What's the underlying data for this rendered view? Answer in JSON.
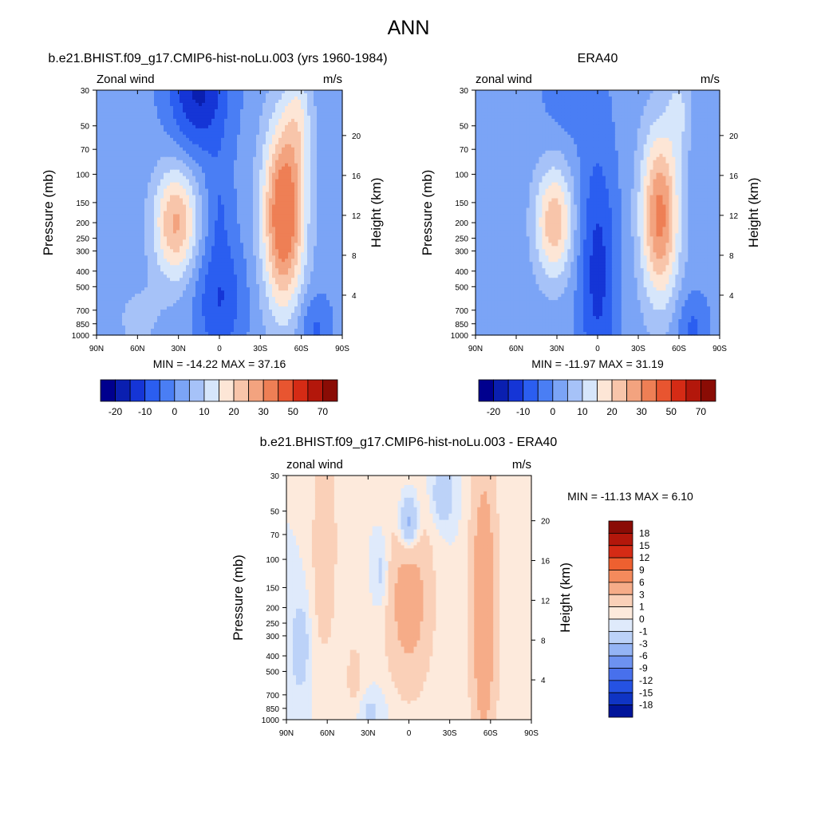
{
  "page": {
    "title": "ANN"
  },
  "chart_data": [
    {
      "id": "model",
      "type": "contour",
      "title": "b.e21.BHIST.f09_g17.CMIP6-hist-noLu.003 (yrs 1960-1984)",
      "left_string": "Zonal wind",
      "right_string": "m/s",
      "xlabel": "",
      "ylabel": "Pressure (mb)",
      "y2label": "Height (km)",
      "x_ticks": [
        "90N",
        "60N",
        "30N",
        "0",
        "30S",
        "60S",
        "90S"
      ],
      "x_values": [
        90,
        60,
        30,
        0,
        -30,
        -60,
        -90
      ],
      "y_ticks": [
        "30",
        "50",
        "70",
        "100",
        "150",
        "200",
        "250",
        "300",
        "400",
        "500",
        "700",
        "850",
        "1000"
      ],
      "y_values": [
        30,
        50,
        70,
        100,
        150,
        200,
        250,
        300,
        400,
        500,
        700,
        850,
        1000
      ],
      "y2_ticks": [
        "4",
        "8",
        "12",
        "16",
        "20"
      ],
      "y2_values": [
        4,
        8,
        12,
        16,
        20
      ],
      "ylim": [
        1000,
        30
      ],
      "xlim": [
        90,
        -90
      ],
      "y_scale": "log",
      "min_max_text": "MIN = -14.22  MAX =  37.16",
      "min": -14.22,
      "max": 37.16
    },
    {
      "id": "obs",
      "type": "contour",
      "title": "ERA40",
      "left_string": "zonal wind",
      "right_string": "m/s",
      "xlabel": "",
      "ylabel": "Pressure (mb)",
      "y2label": "Height (km)",
      "x_ticks": [
        "90N",
        "60N",
        "30N",
        "0",
        "30S",
        "60S",
        "90S"
      ],
      "x_values": [
        90,
        60,
        30,
        0,
        -30,
        -60,
        -90
      ],
      "y_ticks": [
        "30",
        "50",
        "70",
        "100",
        "150",
        "200",
        "250",
        "300",
        "400",
        "500",
        "700",
        "850",
        "1000"
      ],
      "y_values": [
        30,
        50,
        70,
        100,
        150,
        200,
        250,
        300,
        400,
        500,
        700,
        850,
        1000
      ],
      "y2_ticks": [
        "4",
        "8",
        "12",
        "16",
        "20"
      ],
      "y2_values": [
        4,
        8,
        12,
        16,
        20
      ],
      "ylim": [
        1000,
        30
      ],
      "xlim": [
        90,
        -90
      ],
      "y_scale": "log",
      "min_max_text": "MIN = -11.97  MAX =  31.19",
      "min": -11.97,
      "max": 31.19
    },
    {
      "id": "diff",
      "type": "contour",
      "title": "b.e21.BHIST.f09_g17.CMIP6-hist-noLu.003 - ERA40",
      "left_string": "zonal wind",
      "right_string": "m/s",
      "xlabel": "",
      "ylabel": "Pressure (mb)",
      "y2label": "Height (km)",
      "x_ticks": [
        "90N",
        "60N",
        "30N",
        "0",
        "30S",
        "60S",
        "90S"
      ],
      "x_values": [
        90,
        60,
        30,
        0,
        -30,
        -60,
        -90
      ],
      "y_ticks": [
        "30",
        "50",
        "70",
        "100",
        "150",
        "200",
        "250",
        "300",
        "400",
        "500",
        "700",
        "850",
        "1000"
      ],
      "y_values": [
        30,
        50,
        70,
        100,
        150,
        200,
        250,
        300,
        400,
        500,
        700,
        850,
        1000
      ],
      "y2_ticks": [
        "4",
        "8",
        "12",
        "16",
        "20"
      ],
      "y2_values": [
        4,
        8,
        12,
        16,
        20
      ],
      "ylim": [
        1000,
        30
      ],
      "xlim": [
        90,
        -90
      ],
      "y_scale": "log",
      "min_max_text": "MIN = -11.13  MAX =   6.10",
      "min": -11.13,
      "max": 6.1
    }
  ],
  "colorbars": {
    "main": {
      "orientation": "horizontal",
      "colors": [
        "#00008e",
        "#0a1fb0",
        "#1535d6",
        "#2b5ef0",
        "#4a7ef4",
        "#7ba4f6",
        "#a6c2f8",
        "#d6e6fb",
        "#fde6d6",
        "#f8c5aa",
        "#f3a37f",
        "#ee7f55",
        "#e85530",
        "#d52b15",
        "#b3170b",
        "#8a0c05"
      ],
      "labels": [
        "-20",
        "-10",
        "0",
        "10",
        "20",
        "30",
        "50",
        "70"
      ]
    },
    "diff": {
      "orientation": "vertical",
      "colors": [
        "#8a0c05",
        "#b3170b",
        "#d52b15",
        "#ee6030",
        "#f48a5c",
        "#f6ac88",
        "#fad0b8",
        "#fdeadc",
        "#dfeafb",
        "#bcd2f8",
        "#94b4f5",
        "#6d92f1",
        "#4870ec",
        "#2552e3",
        "#0f34c4",
        "#00149a"
      ],
      "labels": [
        "18",
        "15",
        "12",
        "9",
        "6",
        "3",
        "1",
        "0",
        "-1",
        "-3",
        "-6",
        "-9",
        "-12",
        "-15",
        "-18"
      ]
    }
  }
}
